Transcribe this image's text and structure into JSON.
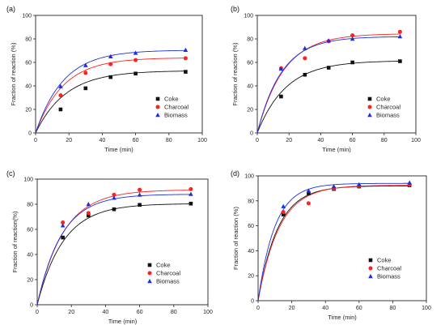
{
  "chart_data": [
    {
      "type": "scatter",
      "panel_label": "(a)",
      "xlabel": "Time (min)",
      "ylabel": "Fraction of reaction (%)",
      "xlim": [
        0,
        100
      ],
      "ylim": [
        0,
        100
      ],
      "xticks": [
        0,
        20,
        40,
        60,
        80,
        100
      ],
      "yticks": [
        0,
        20,
        40,
        60,
        80,
        100
      ],
      "legend_position": "lower-right",
      "series": [
        {
          "name": "Coke",
          "color": "#111111",
          "marker": "square",
          "x": [
            15,
            30,
            45,
            60,
            90
          ],
          "y": [
            20,
            38,
            47.5,
            50.5,
            52
          ],
          "fit_max": 53,
          "fit_k": 0.055
        },
        {
          "name": "Charcoal",
          "color": "#ff2020",
          "marker": "circle",
          "x": [
            15,
            30,
            45,
            60,
            90
          ],
          "y": [
            32,
            51,
            58.5,
            62,
            63.5
          ],
          "fit_max": 64,
          "fit_k": 0.06
        },
        {
          "name": "Biomass",
          "color": "#1a2fe0",
          "marker": "triangle",
          "x": [
            15,
            30,
            45,
            60,
            90
          ],
          "y": [
            39.5,
            57.5,
            65,
            68,
            70.5
          ],
          "fit_max": 70.5,
          "fit_k": 0.06
        }
      ]
    },
    {
      "type": "scatter",
      "panel_label": "(b)",
      "xlabel": "Time (min)",
      "ylabel": "Fraction of reaction (%)",
      "xlim": [
        0,
        100
      ],
      "ylim": [
        0,
        100
      ],
      "xticks": [
        0,
        20,
        40,
        60,
        80,
        100
      ],
      "yticks": [
        0,
        20,
        40,
        60,
        80,
        100
      ],
      "legend_position": "lower-right",
      "series": [
        {
          "name": "Coke",
          "color": "#111111",
          "marker": "square",
          "x": [
            15,
            30,
            45,
            60,
            90
          ],
          "y": [
            31,
            49.5,
            55.5,
            60,
            61
          ],
          "fit_max": 61.5,
          "fit_k": 0.055
        },
        {
          "name": "Charcoal",
          "color": "#ff2020",
          "marker": "circle",
          "x": [
            15,
            30,
            45,
            60,
            90
          ],
          "y": [
            55,
            63.5,
            78,
            83,
            86
          ],
          "fit_max": 84.5,
          "fit_k": 0.06
        },
        {
          "name": "Biomass",
          "color": "#1a2fe0",
          "marker": "triangle",
          "x": [
            15,
            30,
            45,
            60,
            90
          ],
          "y": [
            54.5,
            72,
            78.5,
            80,
            82
          ],
          "fit_max": 82,
          "fit_k": 0.065
        }
      ]
    },
    {
      "type": "scatter",
      "panel_label": "(c)",
      "xlabel": "Time (min)",
      "ylabel": "Fraction of reaction(%)",
      "xlim": [
        0,
        100
      ],
      "ylim": [
        0,
        100
      ],
      "xticks": [
        0,
        20,
        40,
        60,
        80,
        100
      ],
      "yticks": [
        0,
        20,
        40,
        60,
        80,
        100
      ],
      "legend_position": "lower-right",
      "series": [
        {
          "name": "Coke",
          "color": "#111111",
          "marker": "square",
          "x": [
            15,
            30,
            45,
            60,
            90
          ],
          "y": [
            53.5,
            71,
            76,
            79.5,
            80.5
          ],
          "fit_max": 80.5,
          "fit_k": 0.065
        },
        {
          "name": "Charcoal",
          "color": "#ff2020",
          "marker": "circle",
          "x": [
            15,
            30,
            45,
            60,
            90
          ],
          "y": [
            65.5,
            73,
            87.5,
            91.5,
            92
          ],
          "fit_max": 91.5,
          "fit_k": 0.065
        },
        {
          "name": "Biomass",
          "color": "#1a2fe0",
          "marker": "triangle",
          "x": [
            15,
            30,
            45,
            60,
            90
          ],
          "y": [
            63,
            80,
            85,
            87.5,
            88
          ],
          "fit_max": 88,
          "fit_k": 0.07
        }
      ]
    },
    {
      "type": "scatter",
      "panel_label": "(d)",
      "xlabel": "Time (min)",
      "ylabel": "Fraction of reaction (%)",
      "xlim": [
        0,
        100
      ],
      "ylim": [
        0,
        100
      ],
      "xticks": [
        0,
        20,
        40,
        60,
        80,
        100
      ],
      "yticks": [
        0,
        20,
        40,
        60,
        80,
        100
      ],
      "legend_position": "lower-right",
      "series": [
        {
          "name": "Coke",
          "color": "#111111",
          "marker": "square",
          "x": [
            15,
            30,
            45,
            60,
            90
          ],
          "y": [
            69,
            86,
            89.5,
            91.5,
            92.5
          ],
          "fit_max": 92,
          "fit_k": 0.085
        },
        {
          "name": "Charcoal",
          "color": "#ff2020",
          "marker": "circle",
          "x": [
            15,
            30,
            45,
            60,
            90
          ],
          "y": [
            71,
            78,
            90,
            92,
            93
          ],
          "fit_max": 92.5,
          "fit_k": 0.08
        },
        {
          "name": "Biomass",
          "color": "#1a2fe0",
          "marker": "triangle",
          "x": [
            15,
            30,
            45,
            60,
            90
          ],
          "y": [
            75.5,
            88,
            91.5,
            93,
            94.5
          ],
          "fit_max": 94,
          "fit_k": 0.1
        }
      ]
    }
  ]
}
